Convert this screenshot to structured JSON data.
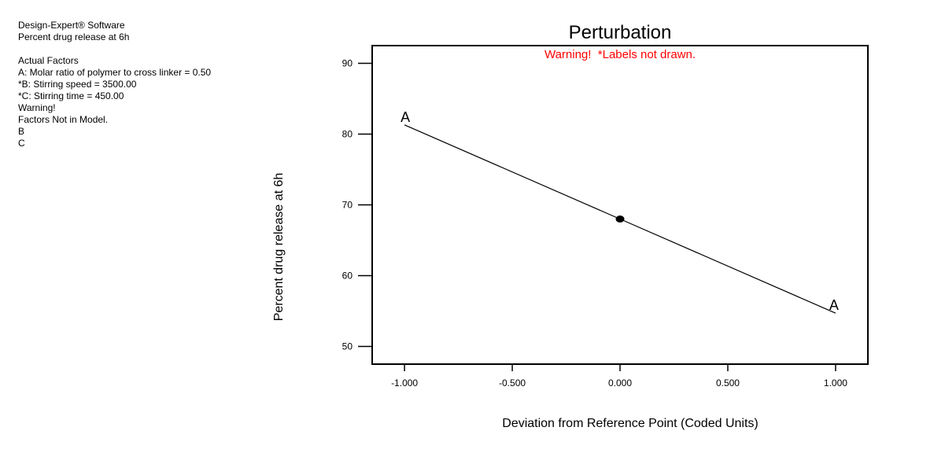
{
  "info_panel": {
    "lines": [
      "Design-Expert® Software",
      "Percent drug release at 6h",
      "",
      "Actual Factors",
      "A: Molar ratio of polymer to cross linker = 0.50",
      "*B: Stirring speed = 3500.00",
      "*C: Stirring time = 450.00",
      "Warning!",
      "Factors Not in Model.",
      "B",
      "C"
    ]
  },
  "chart_data": {
    "type": "line",
    "title": "Perturbation",
    "warning": "Warning!  *Labels not drawn.",
    "warning_color": "#ff0000",
    "xlabel": "Deviation from Reference Point (Coded Units)",
    "ylabel": "Percent drug release at 6h",
    "xlim": [
      -1.15,
      1.15
    ],
    "ylim": [
      47.5,
      92.5
    ],
    "x_ticks": [
      -1.0,
      -0.5,
      0.0,
      0.5,
      1.0
    ],
    "x_tick_labels": [
      "-1.000",
      "-0.500",
      "0.000",
      "0.500",
      "1.000"
    ],
    "y_ticks": [
      50,
      60,
      70,
      80,
      90
    ],
    "y_tick_labels": [
      "50",
      "60",
      "70",
      "80",
      "90"
    ],
    "grid": false,
    "legend_position": "none",
    "line_color": "#000000",
    "series": [
      {
        "name": "A",
        "factor_label": "A",
        "x": [
          -1.0,
          0.0,
          1.0
        ],
        "y": [
          81.3,
          68.0,
          54.7
        ]
      }
    ],
    "reference_point": {
      "x": 0.0,
      "y": 68.0
    }
  }
}
